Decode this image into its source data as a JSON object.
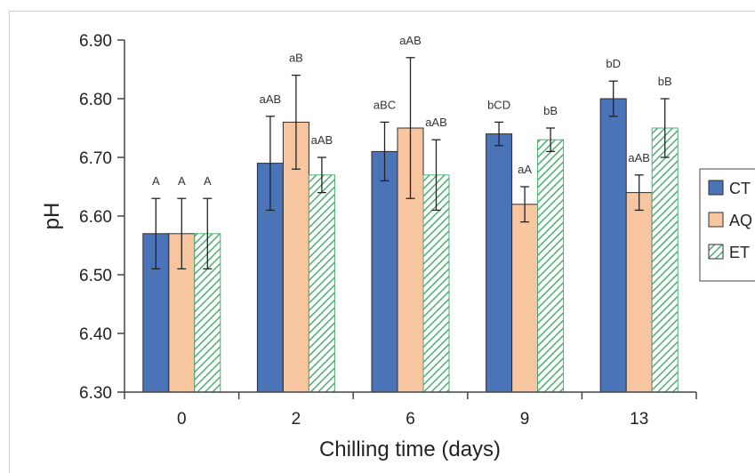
{
  "chart_data": {
    "type": "bar",
    "xlabel": "Chilling time (days)",
    "ylabel": "pH",
    "ylim": [
      6.3,
      6.9
    ],
    "yticks": [
      "6.30",
      "6.40",
      "6.50",
      "6.60",
      "6.70",
      "6.80",
      "6.90"
    ],
    "categories": [
      "0",
      "2",
      "6",
      "9",
      "13"
    ],
    "grid": false,
    "legend_position": "right",
    "series": [
      {
        "name": "CT",
        "color": "#4a73b8",
        "pattern": "solid",
        "values": [
          6.57,
          6.69,
          6.71,
          6.74,
          6.8
        ],
        "errors": [
          0.06,
          0.08,
          0.05,
          0.02,
          0.03
        ],
        "labels": [
          "A",
          "aAB",
          "aBC",
          "bCD",
          "bD"
        ]
      },
      {
        "name": "AQ",
        "color": "#f7c6a0",
        "pattern": "solid",
        "values": [
          6.57,
          6.76,
          6.75,
          6.62,
          6.64
        ],
        "errors": [
          0.06,
          0.08,
          0.12,
          0.03,
          0.03
        ],
        "labels": [
          "A",
          "aB",
          "aAB",
          "aA",
          "aAB"
        ]
      },
      {
        "name": "ET",
        "color": "#4caf72",
        "pattern": "hatched",
        "values": [
          6.57,
          6.67,
          6.67,
          6.73,
          6.75
        ],
        "errors": [
          0.06,
          0.03,
          0.06,
          0.02,
          0.05
        ],
        "labels": [
          "A",
          "aAB",
          "aAB",
          "bB",
          "bB"
        ]
      }
    ]
  }
}
